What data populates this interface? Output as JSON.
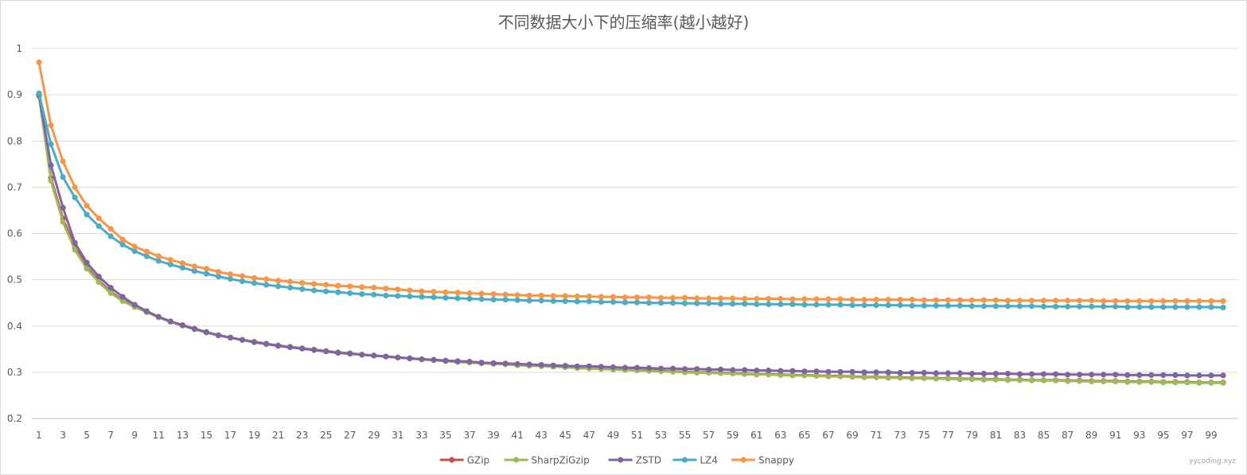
{
  "chart_data": {
    "type": "line",
    "title": "不同数据大小下的压缩率(越小越好)",
    "xlabel": "",
    "ylabel": "",
    "x": [
      1,
      2,
      3,
      4,
      5,
      6,
      7,
      8,
      9,
      10,
      11,
      12,
      13,
      14,
      15,
      16,
      17,
      18,
      19,
      20,
      21,
      22,
      23,
      24,
      25,
      26,
      27,
      28,
      29,
      30,
      31,
      32,
      33,
      34,
      35,
      36,
      37,
      38,
      39,
      40,
      41,
      42,
      43,
      44,
      45,
      46,
      47,
      48,
      49,
      50,
      51,
      52,
      53,
      54,
      55,
      56,
      57,
      58,
      59,
      60,
      61,
      62,
      63,
      64,
      65,
      66,
      67,
      68,
      69,
      70,
      71,
      72,
      73,
      74,
      75,
      76,
      77,
      78,
      79,
      80,
      81,
      82,
      83,
      84,
      85,
      86,
      87,
      88,
      89,
      90,
      91,
      92,
      93,
      94,
      95,
      96,
      97,
      98,
      99,
      100
    ],
    "x_tick_labels": [
      "1",
      "3",
      "5",
      "7",
      "9",
      "11",
      "13",
      "15",
      "17",
      "19",
      "21",
      "23",
      "25",
      "27",
      "29",
      "31",
      "33",
      "35",
      "37",
      "39",
      "41",
      "43",
      "45",
      "47",
      "49",
      "51",
      "53",
      "55",
      "57",
      "59",
      "61",
      "63",
      "65",
      "67",
      "69",
      "71",
      "73",
      "75",
      "77",
      "79",
      "81",
      "83",
      "85",
      "87",
      "89",
      "91",
      "93",
      "95",
      "97",
      "99"
    ],
    "y_tick_labels": [
      "0.2",
      "0.3",
      "0.4",
      "0.5",
      "0.6",
      "0.7",
      "0.8",
      "0.9",
      "1"
    ],
    "ylim": [
      0.2,
      1.0
    ],
    "grid": true,
    "legend_position": "bottom",
    "series": [
      {
        "name": "GZip",
        "color": "#c0504d",
        "values": [
          0.899,
          0.72,
          0.632,
          0.57,
          0.528,
          0.498,
          0.474,
          0.456,
          0.442,
          0.43,
          0.419,
          0.409,
          0.401,
          0.393,
          0.386,
          0.38,
          0.375,
          0.37,
          0.366,
          0.362,
          0.358,
          0.355,
          0.352,
          0.349,
          0.346,
          0.343,
          0.341,
          0.338,
          0.336,
          0.334,
          0.332,
          0.33,
          0.328,
          0.327,
          0.325,
          0.323,
          0.322,
          0.32,
          0.319,
          0.318,
          0.316,
          0.315,
          0.314,
          0.313,
          0.311,
          0.31,
          0.309,
          0.308,
          0.307,
          0.306,
          0.305,
          0.304,
          0.303,
          0.302,
          0.301,
          0.3,
          0.3,
          0.299,
          0.298,
          0.297,
          0.296,
          0.296,
          0.295,
          0.294,
          0.294,
          0.293,
          0.292,
          0.292,
          0.291,
          0.29,
          0.29,
          0.289,
          0.289,
          0.288,
          0.288,
          0.287,
          0.287,
          0.286,
          0.286,
          0.285,
          0.285,
          0.284,
          0.284,
          0.283,
          0.283,
          0.283,
          0.282,
          0.282,
          0.281,
          0.281,
          0.281,
          0.28,
          0.28,
          0.28,
          0.279,
          0.279,
          0.279,
          0.278,
          0.278,
          0.278
        ]
      },
      {
        "name": "SharpZiGzip",
        "color": "#9bbb59",
        "values": [
          0.897,
          0.714,
          0.625,
          0.565,
          0.524,
          0.495,
          0.471,
          0.454,
          0.441,
          0.43,
          0.419,
          0.409,
          0.401,
          0.393,
          0.386,
          0.38,
          0.375,
          0.37,
          0.366,
          0.362,
          0.358,
          0.355,
          0.352,
          0.349,
          0.346,
          0.343,
          0.341,
          0.338,
          0.336,
          0.334,
          0.332,
          0.33,
          0.328,
          0.326,
          0.324,
          0.322,
          0.321,
          0.319,
          0.318,
          0.317,
          0.315,
          0.314,
          0.313,
          0.312,
          0.311,
          0.309,
          0.308,
          0.307,
          0.306,
          0.305,
          0.304,
          0.303,
          0.302,
          0.301,
          0.3,
          0.299,
          0.299,
          0.298,
          0.297,
          0.296,
          0.295,
          0.295,
          0.294,
          0.293,
          0.293,
          0.292,
          0.291,
          0.291,
          0.29,
          0.289,
          0.289,
          0.288,
          0.288,
          0.287,
          0.287,
          0.286,
          0.286,
          0.285,
          0.285,
          0.284,
          0.284,
          0.283,
          0.283,
          0.282,
          0.282,
          0.282,
          0.281,
          0.281,
          0.28,
          0.28,
          0.28,
          0.279,
          0.279,
          0.279,
          0.278,
          0.278,
          0.278,
          0.277,
          0.277,
          0.277
        ]
      },
      {
        "name": "ZSTD",
        "color": "#8064a2",
        "values": [
          0.9,
          0.748,
          0.656,
          0.58,
          0.537,
          0.507,
          0.483,
          0.463,
          0.446,
          0.432,
          0.42,
          0.41,
          0.402,
          0.394,
          0.387,
          0.38,
          0.375,
          0.37,
          0.365,
          0.361,
          0.357,
          0.354,
          0.351,
          0.348,
          0.345,
          0.342,
          0.34,
          0.338,
          0.336,
          0.334,
          0.332,
          0.33,
          0.328,
          0.327,
          0.325,
          0.324,
          0.323,
          0.321,
          0.32,
          0.319,
          0.318,
          0.317,
          0.316,
          0.315,
          0.314,
          0.313,
          0.313,
          0.312,
          0.311,
          0.31,
          0.31,
          0.309,
          0.308,
          0.308,
          0.307,
          0.307,
          0.306,
          0.306,
          0.305,
          0.305,
          0.304,
          0.304,
          0.303,
          0.303,
          0.302,
          0.302,
          0.301,
          0.301,
          0.301,
          0.3,
          0.3,
          0.3,
          0.299,
          0.299,
          0.299,
          0.298,
          0.298,
          0.298,
          0.297,
          0.297,
          0.297,
          0.297,
          0.296,
          0.296,
          0.296,
          0.296,
          0.295,
          0.295,
          0.295,
          0.295,
          0.295,
          0.294,
          0.294,
          0.294,
          0.294,
          0.294,
          0.293,
          0.293,
          0.293,
          0.293
        ]
      },
      {
        "name": "LZ4",
        "color": "#4bacc6",
        "values": [
          0.903,
          0.793,
          0.722,
          0.678,
          0.641,
          0.616,
          0.594,
          0.576,
          0.562,
          0.551,
          0.541,
          0.533,
          0.526,
          0.519,
          0.513,
          0.507,
          0.502,
          0.497,
          0.493,
          0.489,
          0.486,
          0.483,
          0.48,
          0.477,
          0.475,
          0.473,
          0.471,
          0.469,
          0.468,
          0.466,
          0.465,
          0.464,
          0.463,
          0.462,
          0.461,
          0.46,
          0.459,
          0.458,
          0.457,
          0.457,
          0.456,
          0.455,
          0.455,
          0.454,
          0.454,
          0.453,
          0.453,
          0.452,
          0.452,
          0.451,
          0.451,
          0.45,
          0.45,
          0.45,
          0.449,
          0.449,
          0.449,
          0.448,
          0.448,
          0.448,
          0.447,
          0.447,
          0.447,
          0.447,
          0.446,
          0.446,
          0.446,
          0.446,
          0.445,
          0.445,
          0.445,
          0.445,
          0.445,
          0.444,
          0.444,
          0.444,
          0.444,
          0.444,
          0.443,
          0.443,
          0.443,
          0.443,
          0.443,
          0.443,
          0.442,
          0.442,
          0.442,
          0.442,
          0.442,
          0.442,
          0.442,
          0.441,
          0.441,
          0.441,
          0.441,
          0.441,
          0.441,
          0.441,
          0.441,
          0.44
        ]
      },
      {
        "name": "Snappy",
        "color": "#f79646",
        "values": [
          0.97,
          0.834,
          0.756,
          0.7,
          0.66,
          0.633,
          0.61,
          0.587,
          0.572,
          0.561,
          0.551,
          0.543,
          0.536,
          0.529,
          0.524,
          0.517,
          0.512,
          0.508,
          0.504,
          0.501,
          0.498,
          0.496,
          0.493,
          0.491,
          0.489,
          0.487,
          0.486,
          0.484,
          0.483,
          0.481,
          0.479,
          0.477,
          0.475,
          0.474,
          0.473,
          0.472,
          0.471,
          0.47,
          0.469,
          0.468,
          0.467,
          0.466,
          0.466,
          0.465,
          0.465,
          0.464,
          0.464,
          0.463,
          0.463,
          0.462,
          0.462,
          0.462,
          0.461,
          0.461,
          0.461,
          0.46,
          0.46,
          0.46,
          0.46,
          0.459,
          0.459,
          0.459,
          0.459,
          0.458,
          0.458,
          0.458,
          0.458,
          0.458,
          0.457,
          0.457,
          0.457,
          0.457,
          0.457,
          0.457,
          0.456,
          0.456,
          0.456,
          0.456,
          0.456,
          0.456,
          0.456,
          0.455,
          0.455,
          0.455,
          0.455,
          0.455,
          0.455,
          0.455,
          0.455,
          0.454,
          0.454,
          0.454,
          0.454,
          0.454,
          0.454,
          0.454,
          0.454,
          0.454,
          0.454,
          0.454
        ]
      }
    ]
  },
  "watermark": "yycoding.xyz"
}
